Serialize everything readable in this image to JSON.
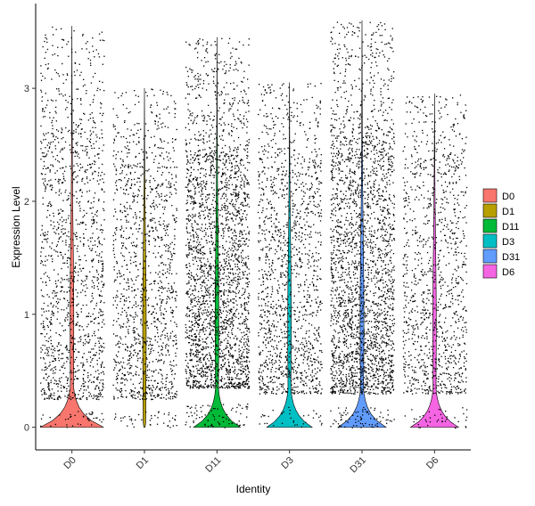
{
  "chart_data": {
    "type": "violin",
    "xlabel": "Identity",
    "ylabel": "Expression Level",
    "ylim": [
      -0.2,
      3.75
    ],
    "yticks": [
      0,
      1,
      2,
      3
    ],
    "categories": [
      "D0",
      "D1",
      "D11",
      "D3",
      "D31",
      "D6"
    ],
    "colors": [
      "#F8766D",
      "#B79F00",
      "#00BA38",
      "#00BFC4",
      "#619CFF",
      "#F564E3"
    ],
    "legend_position": "right",
    "grid": false,
    "jitter_points": true,
    "series": [
      {
        "name": "D0",
        "max": 3.55,
        "zero_peak": 0.95,
        "point_density": 0.55,
        "upper_band": [
          0.25,
          2.6
        ]
      },
      {
        "name": "D1",
        "max": 3.0,
        "zero_peak": 0.02,
        "point_density": 0.5,
        "upper_band": [
          0.25,
          2.3
        ]
      },
      {
        "name": "D11",
        "max": 3.45,
        "zero_peak": 0.7,
        "point_density": 1.0,
        "upper_band": [
          0.35,
          2.4
        ]
      },
      {
        "name": "D3",
        "max": 3.05,
        "zero_peak": 0.68,
        "point_density": 0.55,
        "upper_band": [
          0.3,
          2.3
        ]
      },
      {
        "name": "D31",
        "max": 3.6,
        "zero_peak": 0.72,
        "point_density": 1.0,
        "upper_band": [
          0.3,
          2.5
        ]
      },
      {
        "name": "D6",
        "max": 2.95,
        "zero_peak": 0.72,
        "point_density": 0.45,
        "upper_band": [
          0.3,
          2.3
        ]
      }
    ]
  }
}
